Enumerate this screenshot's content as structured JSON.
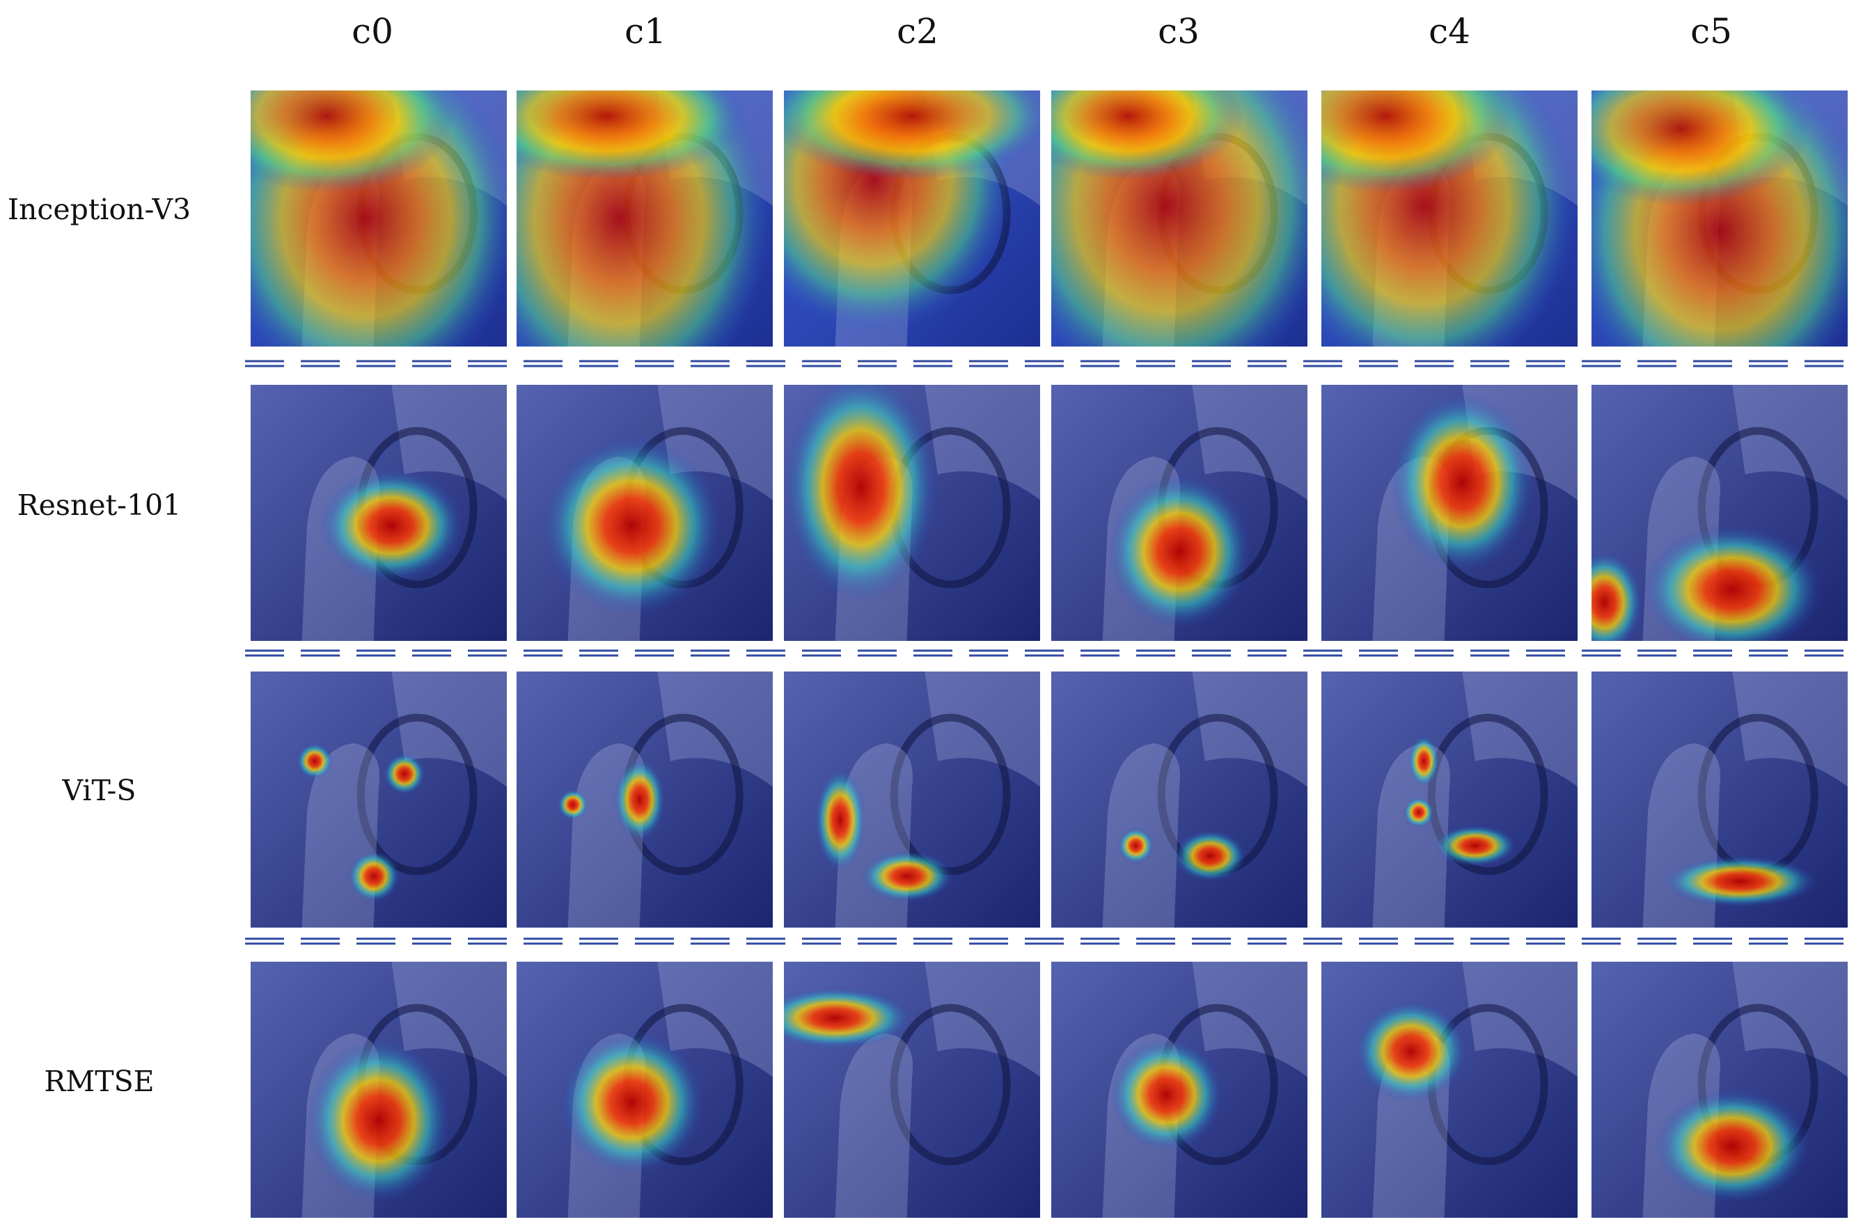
{
  "figure": {
    "columns": [
      {
        "label": "c0"
      },
      {
        "label": "c1"
      },
      {
        "label": "c2"
      },
      {
        "label": "c3"
      },
      {
        "label": "c4"
      },
      {
        "label": "c5"
      }
    ],
    "rows": [
      {
        "label": "Inception-V3",
        "style": "broad"
      },
      {
        "label": "Resnet-101",
        "style": "medium"
      },
      {
        "label": "ViT-S",
        "style": "sparse"
      },
      {
        "label": "RMTSE",
        "style": "focused"
      }
    ],
    "colors": {
      "cool_background": "#1c2a6e",
      "hot": "#b40000",
      "warm": "#ffd400",
      "separator": "#2f4aa0"
    }
  }
}
